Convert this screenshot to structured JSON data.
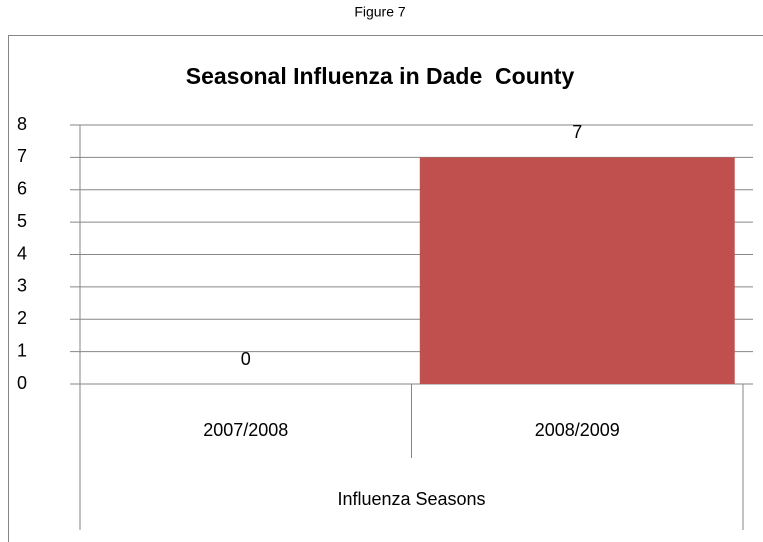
{
  "figure_label": "Figure 7",
  "chart_data": {
    "type": "bar",
    "title": "Seasonal Influenza in Dade  County",
    "categories": [
      "2007/2008",
      "2008/2009"
    ],
    "values": [
      0,
      7
    ],
    "color": "#c0504d",
    "xlabel": "Influenza Seasons",
    "ylim": [
      0,
      8
    ],
    "yticks": [
      0,
      1,
      2,
      3,
      4,
      5,
      6,
      7,
      8
    ],
    "grid": true
  }
}
